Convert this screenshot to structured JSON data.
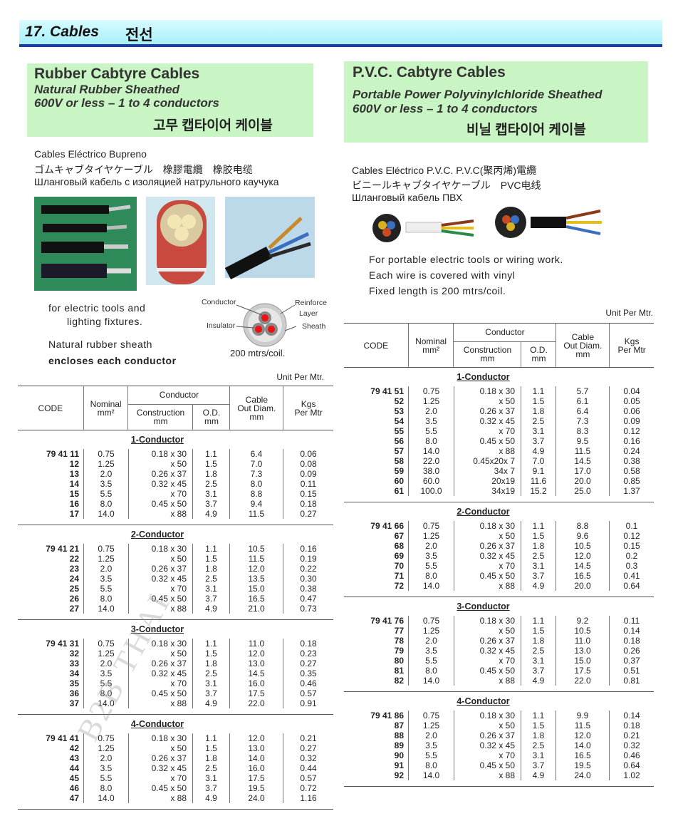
{
  "header": {
    "title": "17. Cables",
    "title_kr": "전선"
  },
  "left": {
    "title": [
      "Rubber Cabtyre Cables",
      "Natural Rubber Sheathed",
      "600V or less – 1 to 4 conductors",
      "고무 캡타이어 케이블"
    ],
    "names": [
      "Cables Eléctrico Bupreno",
      "ゴムキャブタイヤケーブル　橡膠電纜　橡胶电缆",
      "Шланговый кабель с изоляцией натрульного каучука"
    ],
    "desc": [
      "for electric tools and",
      "lighting fixtures.",
      "Natural rubber sheath",
      "encloses each conductor"
    ],
    "diagram": {
      "conductor": "Conductor",
      "reinforce": "Reinforce",
      "layer": "Layer",
      "insulator": "Insulator",
      "sheath": "Sheath",
      "length": "200 mtrs/coil."
    },
    "unit": "Unit Per Mtr.",
    "table": {
      "header": {
        "code": "CODE",
        "nominal": [
          "Nominal",
          "mm²"
        ],
        "conductor": "Conductor",
        "construction": [
          "Construction",
          "mm"
        ],
        "od": [
          "O.D.",
          "mm"
        ],
        "cable": [
          "Cable",
          "Out Diam.",
          "mm"
        ],
        "kgs": [
          "Kgs",
          "Per Mtr"
        ]
      },
      "groups": [
        {
          "name": "1-Conductor",
          "rows": [
            [
              "79 41 11",
              "0.75",
              "0.18 x 30",
              "1.1",
              "6.4",
              "0.06"
            ],
            [
              "12",
              "1.25",
              "x 50",
              "1.5",
              "7.0",
              "0.08"
            ],
            [
              "13",
              "2.0",
              "0.26 x 37",
              "1.8",
              "7.3",
              "0.09"
            ],
            [
              "14",
              "3.5",
              "0.32 x 45",
              "2.5",
              "8.0",
              "0.11"
            ],
            [
              "15",
              "5.5",
              "x 70",
              "3.1",
              "8.8",
              "0.15"
            ],
            [
              "16",
              "8.0",
              "0.45 x 50",
              "3.7",
              "9.4",
              "0.18"
            ],
            [
              "17",
              "14.0",
              "x 88",
              "4.9",
              "11.5",
              "0.27"
            ]
          ]
        },
        {
          "name": "2-Conductor",
          "rows": [
            [
              "79 41 21",
              "0.75",
              "0.18 x 30",
              "1.1",
              "10.5",
              "0.16"
            ],
            [
              "22",
              "1.25",
              "x 50",
              "1.5",
              "11.5",
              "0.19"
            ],
            [
              "23",
              "2.0",
              "0.26 x 37",
              "1.8",
              "12.0",
              "0.22"
            ],
            [
              "24",
              "3.5",
              "0.32 x 45",
              "2.5",
              "13.5",
              "0.30"
            ],
            [
              "25",
              "5.5",
              "x 70",
              "3.1",
              "15.0",
              "0.38"
            ],
            [
              "26",
              "8.0",
              "0.45 x 50",
              "3.7",
              "16.5",
              "0.47"
            ],
            [
              "27",
              "14.0",
              "x 88",
              "4.9",
              "21.0",
              "0.73"
            ]
          ]
        },
        {
          "name": "3-Conductor",
          "rows": [
            [
              "79 41 31",
              "0.75",
              "0.18 x 30",
              "1.1",
              "11.0",
              "0.18"
            ],
            [
              "32",
              "1.25",
              "x 50",
              "1.5",
              "12.0",
              "0.23"
            ],
            [
              "33",
              "2.0",
              "0.26 x 37",
              "1.8",
              "13.0",
              "0.27"
            ],
            [
              "34",
              "3.5",
              "0.32 x 45",
              "2.5",
              "14.5",
              "0.35"
            ],
            [
              "35",
              "5.5",
              "x 70",
              "3.1",
              "16.0",
              "0.46"
            ],
            [
              "36",
              "8.0",
              "0.45 x 50",
              "3.7",
              "17.5",
              "0.57"
            ],
            [
              "37",
              "14.0",
              "x 88",
              "4.9",
              "22.0",
              "0.91"
            ]
          ]
        },
        {
          "name": "4-Conductor",
          "rows": [
            [
              "79 41 41",
              "0.75",
              "0.18 x 30",
              "1.1",
              "12.0",
              "0.21"
            ],
            [
              "42",
              "1.25",
              "x 50",
              "1.5",
              "13.0",
              "0.27"
            ],
            [
              "43",
              "2.0",
              "0.26 x 37",
              "1.8",
              "14.0",
              "0.32"
            ],
            [
              "44",
              "3.5",
              "0.32 x 45",
              "2.5",
              "16.0",
              "0.44"
            ],
            [
              "45",
              "5.5",
              "x 70",
              "3.1",
              "17.5",
              "0.57"
            ],
            [
              "46",
              "8.0",
              "0.45 x 50",
              "3.7",
              "19.5",
              "0.72"
            ],
            [
              "47",
              "14.0",
              "x 88",
              "4.9",
              "24.0",
              "1.16"
            ]
          ]
        }
      ]
    }
  },
  "right": {
    "title": [
      "P.V.C. Cabtyre Cables",
      "Portable Power Polyvinylchloride Sheathed",
      "600V or less – 1 to 4 conductors",
      "비닐 캡타이어 케이블"
    ],
    "names": [
      "Cables Eléctrico P.V.C. P.V.C(聚丙烯)電纜",
      "ビニールキャブタイヤケーブル　PVC电线",
      "Шланговый кабель ПВХ"
    ],
    "desc": [
      "For portable electric tools or wiring work.",
      "Each wire is covered with vinyl",
      "Fixed length is 200 mtrs/coil."
    ],
    "unit": "Unit Per Mtr.",
    "table": {
      "header": {
        "code": "CODE",
        "nominal": [
          "Nominal",
          "mm²"
        ],
        "conductor": "Conductor",
        "construction": [
          "Construction",
          "mm"
        ],
        "od": [
          "O.D.",
          "mm"
        ],
        "cable": [
          "Cable",
          "Out Diam.",
          "mm"
        ],
        "kgs": [
          "Kgs",
          "Per Mtr"
        ]
      },
      "groups": [
        {
          "name": "1-Conductor",
          "rows": [
            [
              "79 41 51",
              "0.75",
              "0.18 x 30",
              "1.1",
              "5.7",
              "0.04"
            ],
            [
              "52",
              "1.25",
              "x 50",
              "1.5",
              "6.1",
              "0.05"
            ],
            [
              "53",
              "2.0",
              "0.26 x 37",
              "1.8",
              "6.4",
              "0.06"
            ],
            [
              "54",
              "3.5",
              "0.32 x 45",
              "2.5",
              "7.3",
              "0.09"
            ],
            [
              "55",
              "5.5",
              "x 70",
              "3.1",
              "8.3",
              "0.12"
            ],
            [
              "56",
              "8.0",
              "0.45 x 50",
              "3.7",
              "9.5",
              "0.16"
            ],
            [
              "57",
              "14.0",
              "x 88",
              "4.9",
              "11.5",
              "0.24"
            ],
            [
              "58",
              "22.0",
              "0.45x20x 7",
              "7.0",
              "14.5",
              "0.38"
            ],
            [
              "59",
              "38.0",
              "34x 7",
              "9.1",
              "17.0",
              "0.58"
            ],
            [
              "60",
              "60.0",
              "20x19",
              "11.6",
              "20.0",
              "0.85"
            ],
            [
              "61",
              "100.0",
              "34x19",
              "15.2",
              "25.0",
              "1.37"
            ]
          ]
        },
        {
          "name": "2-Conductor",
          "rows": [
            [
              "79 41 66",
              "0.75",
              "0.18 x 30",
              "1.1",
              "8.8",
              "0.1"
            ],
            [
              "67",
              "1.25",
              "x 50",
              "1.5",
              "9.6",
              "0.12"
            ],
            [
              "68",
              "2.0",
              "0.26 x 37",
              "1.8",
              "10.5",
              "0.15"
            ],
            [
              "69",
              "3.5",
              "0.32 x 45",
              "2.5",
              "12.0",
              "0.2"
            ],
            [
              "70",
              "5.5",
              "x 70",
              "3.1",
              "14.5",
              "0.3"
            ],
            [
              "71",
              "8.0",
              "0.45 x 50",
              "3.7",
              "16.5",
              "0.41"
            ],
            [
              "72",
              "14.0",
              "x 88",
              "4.9",
              "20.0",
              "0.64"
            ]
          ]
        },
        {
          "name": "3-Conductor",
          "rows": [
            [
              "79 41 76",
              "0.75",
              "0.18 x 30",
              "1.1",
              "9.2",
              "0.11"
            ],
            [
              "77",
              "1.25",
              "x 50",
              "1.5",
              "10.5",
              "0.14"
            ],
            [
              "78",
              "2.0",
              "0.26 x 37",
              "1.8",
              "11.0",
              "0.18"
            ],
            [
              "79",
              "3.5",
              "0.32 x 45",
              "2.5",
              "13.0",
              "0.26"
            ],
            [
              "80",
              "5.5",
              "x 70",
              "3.1",
              "15.0",
              "0.37"
            ],
            [
              "81",
              "8.0",
              "0.45 x 50",
              "3.7",
              "17.5",
              "0.51"
            ],
            [
              "82",
              "14.0",
              "x 88",
              "4.9",
              "22.0",
              "0.81"
            ]
          ]
        },
        {
          "name": "4-Conductor",
          "rows": [
            [
              "79 41 86",
              "0.75",
              "0.18 x 30",
              "1.1",
              "9.9",
              "0.14"
            ],
            [
              "87",
              "1.25",
              "x 50",
              "1.5",
              "11.5",
              "0.18"
            ],
            [
              "88",
              "2.0",
              "0.26 x 37",
              "1.8",
              "12.0",
              "0.21"
            ],
            [
              "89",
              "3.5",
              "0.32 x 45",
              "2.5",
              "14.0",
              "0.32"
            ],
            [
              "90",
              "5.5",
              "x 70",
              "3.1",
              "16.5",
              "0.46"
            ],
            [
              "91",
              "8.0",
              "0.45 x 50",
              "3.7",
              "19.5",
              "0.64"
            ],
            [
              "92",
              "14.0",
              "x 88",
              "4.9",
              "24.0",
              "1.02"
            ]
          ]
        }
      ]
    }
  },
  "watermark": "B2B THAI"
}
